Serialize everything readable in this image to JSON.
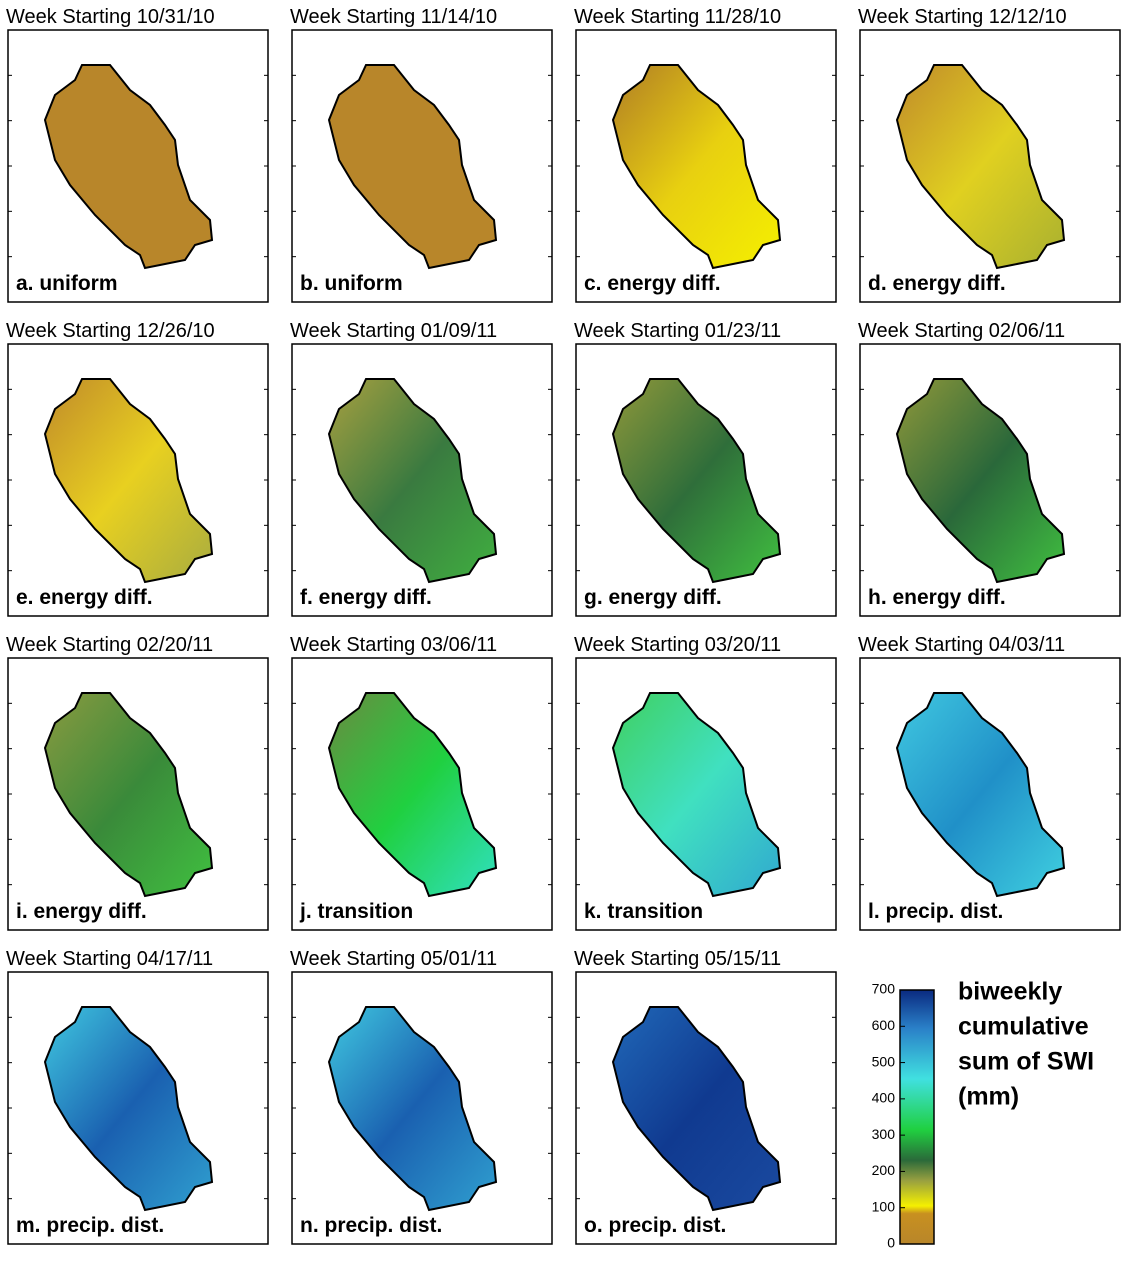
{
  "panels": [
    {
      "title": "Week Starting 10/31/10",
      "label": "a. uniform"
    },
    {
      "title": "Week Starting 11/14/10",
      "label": "b. uniform"
    },
    {
      "title": "Week Starting 11/28/10",
      "label": "c. energy diff."
    },
    {
      "title": "Week Starting 12/12/10",
      "label": "d. energy diff."
    },
    {
      "title": "Week Starting 12/26/10",
      "label": "e. energy diff."
    },
    {
      "title": "Week Starting 01/09/11",
      "label": "f. energy diff."
    },
    {
      "title": "Week Starting 01/23/11",
      "label": "g. energy diff."
    },
    {
      "title": "Week Starting 02/06/11",
      "label": "h. energy diff."
    },
    {
      "title": "Week Starting 02/20/11",
      "label": "i. energy diff."
    },
    {
      "title": "Week Starting 03/06/11",
      "label": "j. transition"
    },
    {
      "title": "Week Starting 03/20/11",
      "label": "k. transition"
    },
    {
      "title": "Week Starting 04/03/11",
      "label": "l. precip. dist."
    },
    {
      "title": "Week Starting 04/17/11",
      "label": "m. precip. dist."
    },
    {
      "title": "Week Starting 05/01/11",
      "label": "n. precip. dist."
    },
    {
      "title": "Week Starting 05/15/11",
      "label": "o. precip. dist."
    }
  ],
  "colorbar": {
    "lim": [
      0,
      700
    ],
    "ticks": [
      0,
      100,
      200,
      300,
      400,
      500,
      600,
      700
    ],
    "label": [
      "biweekly",
      "cumulative",
      "sum of SWI",
      "(mm)"
    ]
  }
}
